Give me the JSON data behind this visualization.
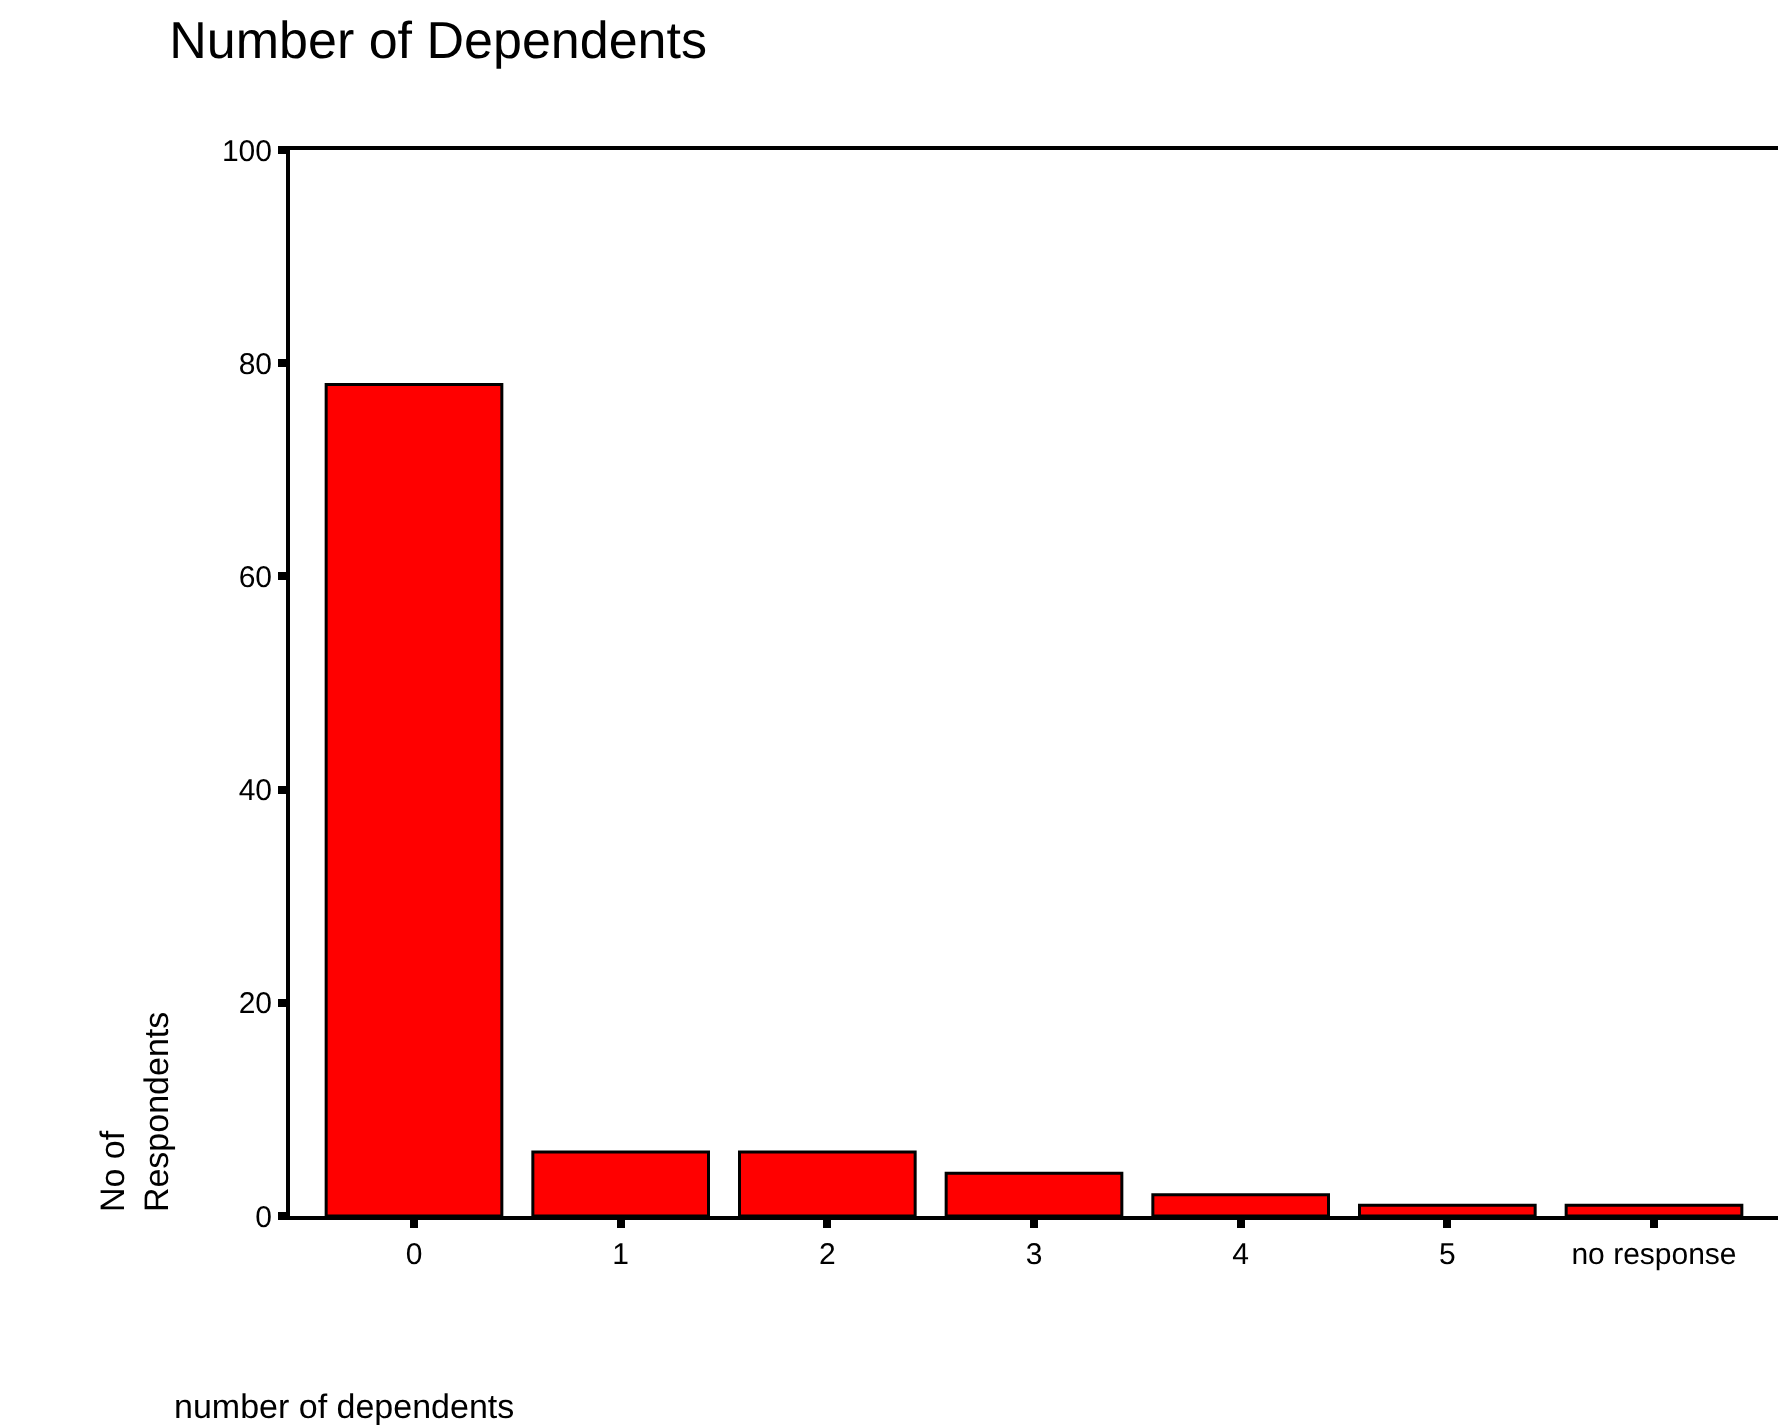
{
  "chart_data": {
    "type": "bar",
    "title": "Number of Dependents",
    "xlabel": "number of dependents",
    "ylabel": "No of\nRespondents",
    "categories": [
      "0",
      "1",
      "2",
      "3",
      "4",
      "5",
      "no response"
    ],
    "values": [
      78,
      6,
      6,
      4,
      2,
      1,
      1
    ],
    "color": "#ff0000",
    "ylim": [
      0,
      100
    ],
    "yticks": [
      0,
      20,
      40,
      60,
      80,
      100
    ]
  }
}
